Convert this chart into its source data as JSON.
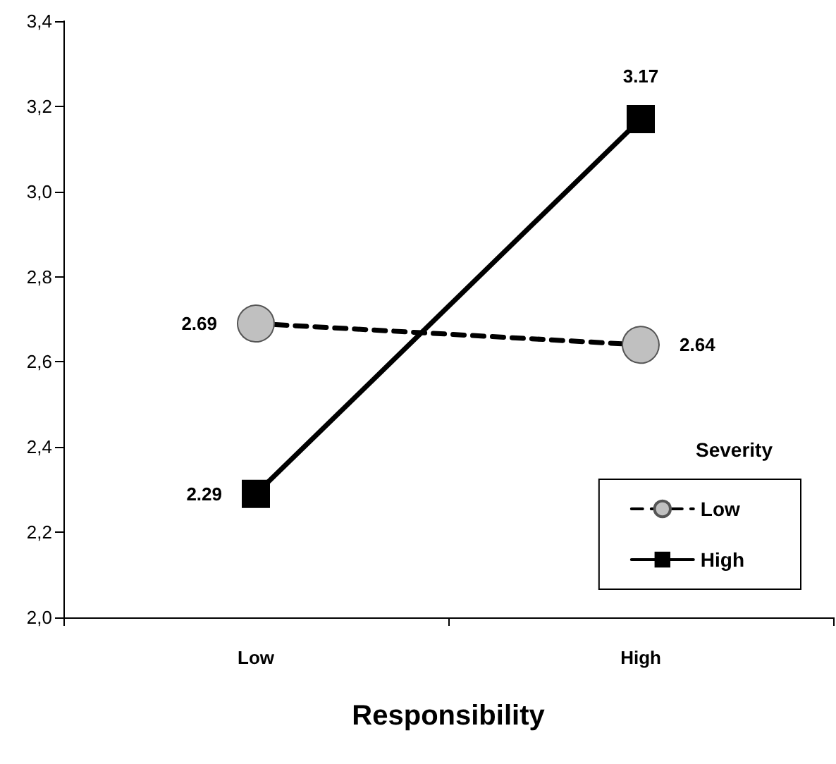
{
  "chart_data": {
    "type": "line",
    "xlabel": "Responsibility",
    "legend_title": "Severity",
    "categories": [
      "Low",
      "High"
    ],
    "series": [
      {
        "name": "Low",
        "color": "#c0c0c0",
        "values": [
          2.69,
          2.64
        ],
        "marker": "circle",
        "line_style": "dashed"
      },
      {
        "name": "High",
        "color": "#000000",
        "values": [
          2.29,
          3.17
        ],
        "marker": "square",
        "line_style": "solid"
      }
    ],
    "ylim": [
      2.0,
      3.4
    ],
    "yticks": [
      {
        "value": 2.0,
        "label": "2,0"
      },
      {
        "value": 2.2,
        "label": "2,2"
      },
      {
        "value": 2.4,
        "label": "2,4"
      },
      {
        "value": 2.6,
        "label": "2,6"
      },
      {
        "value": 2.8,
        "label": "2,8"
      },
      {
        "value": 3.0,
        "label": "3,0"
      },
      {
        "value": 3.2,
        "label": "3,2"
      },
      {
        "value": 3.4,
        "label": "3,4"
      }
    ],
    "data_labels": true,
    "grid": false,
    "legend": "bottom right"
  }
}
